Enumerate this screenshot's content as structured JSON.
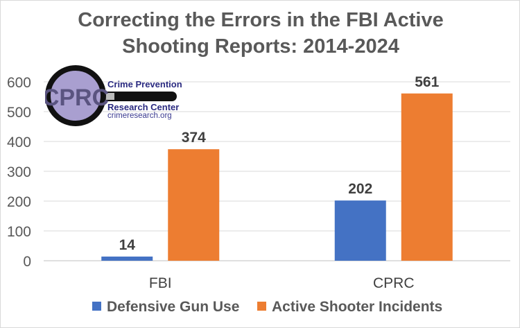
{
  "chart_data": {
    "type": "bar",
    "title": "Correcting the Errors in the FBI Active Shooting Reports: 2014-2024",
    "title_lines": [
      "Correcting the Errors in the FBI Active",
      "Shooting Reports: 2014-2024"
    ],
    "categories": [
      "FBI",
      "CPRC"
    ],
    "series": [
      {
        "name": "Defensive Gun Use",
        "values": [
          14,
          202
        ],
        "color": "#4472c4"
      },
      {
        "name": "Active Shooter Incidents",
        "values": [
          374,
          561
        ],
        "color": "#ed7d31"
      }
    ],
    "ylim": [
      0,
      600
    ],
    "yticks": [
      0,
      100,
      200,
      300,
      400,
      500,
      600
    ],
    "grid": true,
    "legend": "bottom",
    "xlabel": "",
    "ylabel": ""
  },
  "logo": {
    "mark": "CPRC",
    "line1": "Crime Prevention",
    "line2": "Research Center",
    "url": "crimeresearch.org"
  }
}
